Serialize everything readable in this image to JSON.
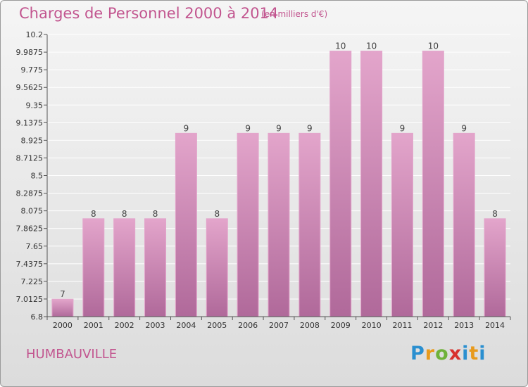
{
  "chart_data": {
    "type": "bar",
    "title": "Charges de Personnel 2000 à 2014",
    "subtitle": "(en milliers d'€)",
    "categories": [
      "2000",
      "2001",
      "2002",
      "2003",
      "2004",
      "2005",
      "2006",
      "2007",
      "2008",
      "2009",
      "2010",
      "2011",
      "2012",
      "2013",
      "2014"
    ],
    "values": [
      7,
      8,
      8,
      8,
      9,
      8,
      9,
      9,
      9,
      10,
      10,
      9,
      10,
      9,
      8
    ],
    "value_labels": [
      "7",
      "8",
      "8",
      "8",
      "9",
      "8",
      "9",
      "9",
      "9",
      "10",
      "10",
      "9",
      "10",
      "9",
      "8"
    ],
    "bar_tops": [
      7.01,
      7.98,
      7.98,
      7.98,
      9.01,
      7.98,
      9.01,
      9.01,
      9.01,
      10.0,
      10.0,
      9.01,
      10.0,
      9.01,
      7.98
    ],
    "ylim": [
      6.8,
      10.2
    ],
    "yticks": [
      "6.8",
      "7.0125",
      "7.225",
      "7.4375",
      "7.65",
      "7.8625",
      "8.075",
      "8.2875",
      "8.5",
      "8.7125",
      "8.925",
      "9.1375",
      "9.35",
      "9.5625",
      "9.775",
      "9.9875",
      "10.2"
    ],
    "grid": true,
    "colors": {
      "bar": "#d992bd",
      "bar_dark": "#b0699a",
      "bar_light": "#e3a5cb",
      "grid": "#ffffff",
      "axis": "#555555"
    }
  },
  "footer": {
    "commune": "HUMBAUVILLE",
    "logo_text": "Proxiti"
  }
}
